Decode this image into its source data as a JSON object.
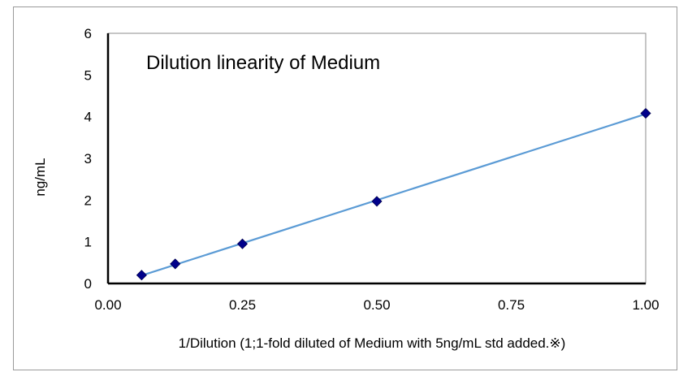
{
  "chart_data": {
    "type": "scatter",
    "title": "Dilution linearity of Medium",
    "xlabel": "1/Dilution (1;1-fold diluted of  Medium with 5ng/mL  std added.※)",
    "ylabel": "ng/mL",
    "xlim": [
      0,
      1
    ],
    "ylim": [
      0,
      6
    ],
    "x_ticks": [
      "0.00",
      "0.25",
      "0.50",
      "0.75",
      "1.00"
    ],
    "y_ticks": [
      "0",
      "1",
      "2",
      "3",
      "4",
      "5",
      "6"
    ],
    "grid": false,
    "trendline": "linear",
    "series": [
      {
        "points": [
          {
            "x": 0.0625,
            "y": 0.2
          },
          {
            "x": 0.125,
            "y": 0.47
          },
          {
            "x": 0.25,
            "y": 0.95
          },
          {
            "x": 0.5,
            "y": 1.97
          },
          {
            "x": 1.0,
            "y": 4.08
          }
        ]
      }
    ],
    "colors": {
      "marker": "#00008b",
      "trendline": "#5b9bd5",
      "axis": "#000000",
      "plot_border": "#8c8c8c"
    }
  }
}
